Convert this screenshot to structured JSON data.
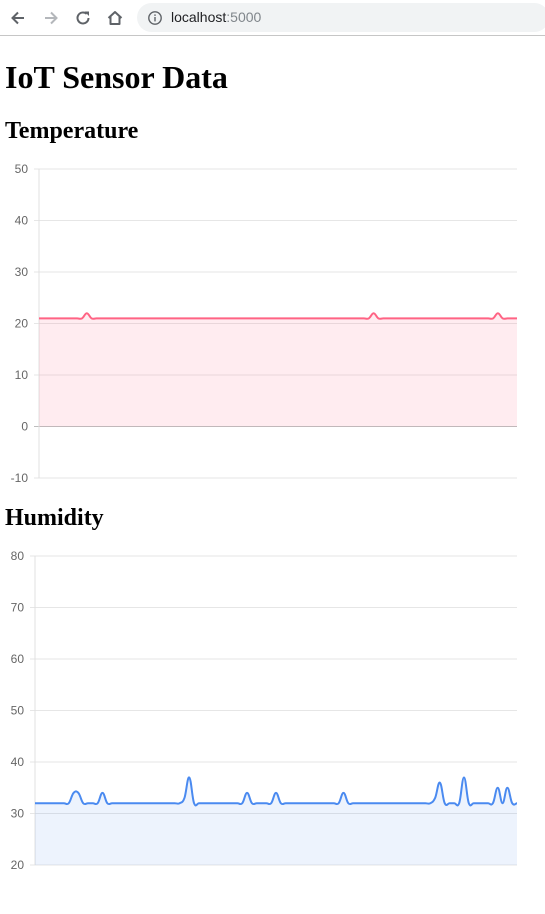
{
  "browser": {
    "url_host": "localhost",
    "url_port": ":5000",
    "icons": [
      "back-arrow-icon",
      "forward-arrow-icon",
      "reload-icon",
      "home-icon",
      "info-icon"
    ]
  },
  "page": {
    "title": "IoT Sensor Data"
  },
  "chart_data": [
    {
      "type": "line",
      "title": "Temperature",
      "xlabel": "",
      "ylabel": "",
      "ylim": [
        -10,
        50
      ],
      "yticks": [
        50,
        40,
        30,
        20,
        10,
        0,
        -10
      ],
      "grid": true,
      "fill": true,
      "color": "#ff6384",
      "fill_color": "rgba(255,99,132,0.12)",
      "x": [
        0,
        1,
        2,
        3,
        4,
        5,
        6,
        7,
        8,
        9,
        10,
        11,
        12,
        13,
        14,
        15,
        16,
        17,
        18,
        19,
        20,
        21,
        22,
        23,
        24,
        25,
        26,
        27,
        28,
        29,
        30,
        31,
        32,
        33,
        34,
        35,
        36,
        37,
        38,
        39,
        40,
        41,
        42,
        43,
        44,
        45,
        46,
        47,
        48,
        49,
        50,
        51,
        52,
        53,
        54,
        55,
        56,
        57,
        58,
        59,
        60,
        61,
        62,
        63,
        64,
        65,
        66,
        67,
        68,
        69,
        70,
        71,
        72,
        73,
        74,
        75,
        76,
        77,
        78,
        79,
        80,
        81,
        82,
        83,
        84,
        85,
        86,
        87,
        88,
        89,
        90,
        91,
        92,
        93,
        94,
        95,
        96,
        97,
        98,
        99,
        100
      ],
      "values": [
        21,
        21,
        21,
        21,
        21,
        21,
        21,
        21,
        21,
        21,
        22,
        21,
        21,
        21,
        21,
        21,
        21,
        21,
        21,
        21,
        21,
        21,
        21,
        21,
        21,
        21,
        21,
        21,
        21,
        21,
        21,
        21,
        21,
        21,
        21,
        21,
        21,
        21,
        21,
        21,
        21,
        21,
        21,
        21,
        21,
        21,
        21,
        21,
        21,
        21,
        21,
        21,
        21,
        21,
        21,
        21,
        21,
        21,
        21,
        21,
        21,
        21,
        21,
        21,
        21,
        21,
        21,
        21,
        21,
        21,
        22,
        21,
        21,
        21,
        21,
        21,
        21,
        21,
        21,
        21,
        21,
        21,
        21,
        21,
        21,
        21,
        21,
        21,
        21,
        21,
        21,
        21,
        21,
        21,
        21,
        21,
        22,
        21,
        21,
        21,
        21
      ]
    },
    {
      "type": "line",
      "title": "Humidity",
      "xlabel": "",
      "ylabel": "",
      "ylim": [
        20,
        80
      ],
      "yticks": [
        80,
        70,
        60,
        50,
        40,
        30,
        20
      ],
      "grid": true,
      "fill": true,
      "color": "#4a8af0",
      "fill_color": "rgba(54,120,235,0.09)",
      "x": [
        0,
        1,
        2,
        3,
        4,
        5,
        6,
        7,
        8,
        9,
        10,
        11,
        12,
        13,
        14,
        15,
        16,
        17,
        18,
        19,
        20,
        21,
        22,
        23,
        24,
        25,
        26,
        27,
        28,
        29,
        30,
        31,
        32,
        33,
        34,
        35,
        36,
        37,
        38,
        39,
        40,
        41,
        42,
        43,
        44,
        45,
        46,
        47,
        48,
        49,
        50,
        51,
        52,
        53,
        54,
        55,
        56,
        57,
        58,
        59,
        60,
        61,
        62,
        63,
        64,
        65,
        66,
        67,
        68,
        69,
        70,
        71,
        72,
        73,
        74,
        75,
        76,
        77,
        78,
        79,
        80,
        81,
        82,
        83,
        84,
        85,
        86,
        87,
        88,
        89,
        90,
        91,
        92,
        93,
        94,
        95,
        96,
        97,
        98,
        99,
        100
      ],
      "values": [
        32,
        32,
        32,
        32,
        32,
        32,
        32,
        32,
        34,
        34,
        32,
        32,
        32,
        32,
        34,
        32,
        32,
        32,
        32,
        32,
        32,
        32,
        32,
        32,
        32,
        32,
        32,
        32,
        32,
        32,
        32,
        33,
        37,
        32,
        32,
        32,
        32,
        32,
        32,
        32,
        32,
        32,
        32,
        32,
        34,
        32,
        32,
        32,
        32,
        32,
        34,
        32,
        32,
        32,
        32,
        32,
        32,
        32,
        32,
        32,
        32,
        32,
        32,
        32,
        34,
        32,
        32,
        32,
        32,
        32,
        32,
        32,
        32,
        32,
        32,
        32,
        32,
        32,
        32,
        32,
        32,
        32,
        32,
        33,
        36,
        32,
        32,
        32,
        32,
        37,
        32,
        32,
        32,
        32,
        32,
        32,
        35,
        32,
        35,
        32,
        32
      ]
    }
  ]
}
